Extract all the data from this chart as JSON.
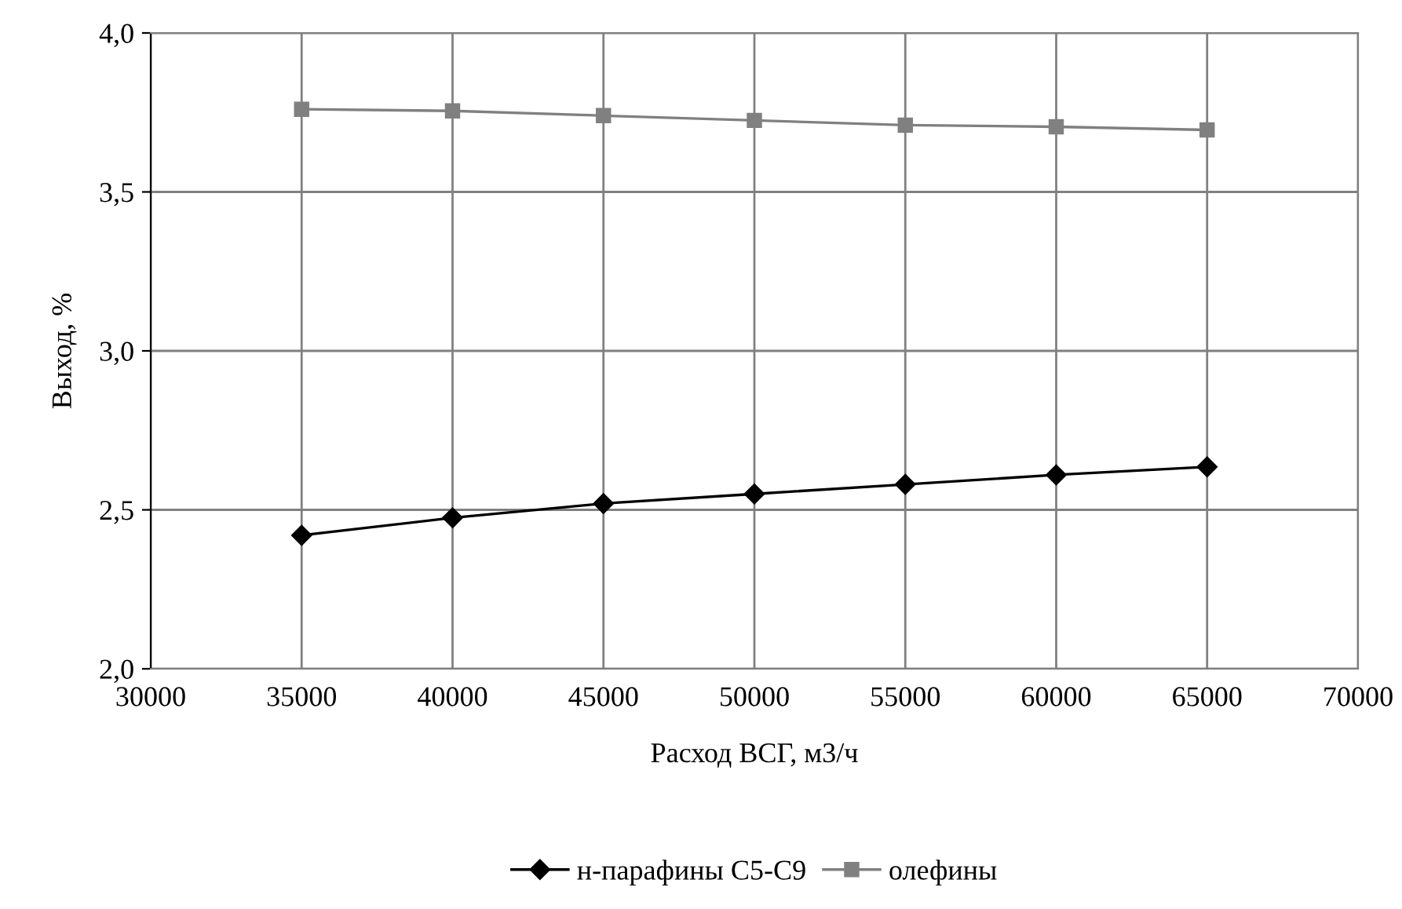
{
  "chart_data": {
    "type": "line",
    "xlabel": "Расход ВСГ, м3/ч",
    "ylabel": "Выход, %",
    "x": [
      35000,
      40000,
      45000,
      50000,
      55000,
      60000,
      65000
    ],
    "series": [
      {
        "name": "н-парафины С5-С9",
        "color": "#000000",
        "marker": "diamond",
        "values": [
          2.42,
          2.475,
          2.52,
          2.55,
          2.58,
          2.61,
          2.635
        ]
      },
      {
        "name": "олефины",
        "color": "#808080",
        "marker": "square",
        "values": [
          3.76,
          3.755,
          3.74,
          3.725,
          3.71,
          3.705,
          3.695
        ]
      }
    ],
    "xlim": [
      30000,
      70000
    ],
    "xticks": [
      30000,
      35000,
      40000,
      45000,
      50000,
      55000,
      60000,
      65000,
      70000
    ],
    "ylim": [
      2.0,
      4.0
    ],
    "yticks": [
      {
        "value": 2.0,
        "label": "2,0"
      },
      {
        "value": 2.5,
        "label": "2,5"
      },
      {
        "value": 3.0,
        "label": "3,0"
      },
      {
        "value": 3.5,
        "label": "3,5"
      },
      {
        "value": 4.0,
        "label": "4,0"
      }
    ],
    "grid": true,
    "legend": "bottom"
  }
}
